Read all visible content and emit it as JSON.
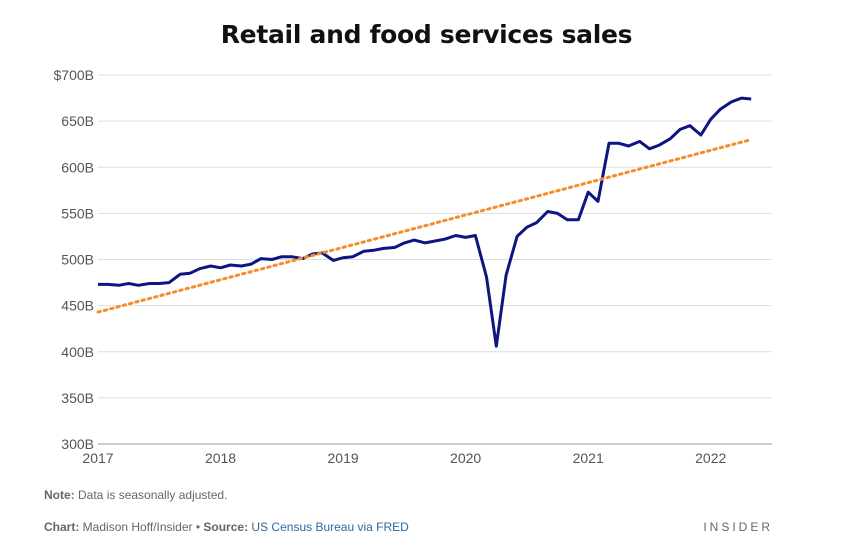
{
  "chart_data": {
    "type": "line",
    "title": "Retail and food services sales",
    "xlabel": "",
    "ylabel": "",
    "x_tick_labels": [
      "2017",
      "2018",
      "2019",
      "2020",
      "2021",
      "2022"
    ],
    "y_tick_labels": [
      "300B",
      "350B",
      "400B",
      "450B",
      "500B",
      "550B",
      "600B",
      "650B",
      "$700B"
    ],
    "ylim": [
      300,
      700
    ],
    "xlim": [
      2017.0,
      2022.5
    ],
    "grid": "horizontal",
    "colors": {
      "sales": "#0d1680",
      "trend": "#f28e2b"
    },
    "series": [
      {
        "style": "solid",
        "points": [
          [
            2017.0,
            473
          ],
          [
            2017.08,
            473
          ],
          [
            2017.17,
            472
          ],
          [
            2017.25,
            474
          ],
          [
            2017.33,
            472
          ],
          [
            2017.42,
            474
          ],
          [
            2017.5,
            474
          ],
          [
            2017.58,
            475
          ],
          [
            2017.67,
            484
          ],
          [
            2017.75,
            485
          ],
          [
            2017.83,
            490
          ],
          [
            2017.92,
            493
          ],
          [
            2018.0,
            491
          ],
          [
            2018.08,
            494
          ],
          [
            2018.17,
            493
          ],
          [
            2018.25,
            495
          ],
          [
            2018.33,
            501
          ],
          [
            2018.42,
            500
          ],
          [
            2018.5,
            503
          ],
          [
            2018.58,
            503
          ],
          [
            2018.67,
            501
          ],
          [
            2018.75,
            506
          ],
          [
            2018.83,
            507
          ],
          [
            2018.92,
            499
          ],
          [
            2019.0,
            502
          ],
          [
            2019.08,
            503
          ],
          [
            2019.17,
            509
          ],
          [
            2019.25,
            510
          ],
          [
            2019.33,
            512
          ],
          [
            2019.42,
            513
          ],
          [
            2019.5,
            518
          ],
          [
            2019.58,
            521
          ],
          [
            2019.67,
            518
          ],
          [
            2019.75,
            520
          ],
          [
            2019.83,
            522
          ],
          [
            2019.92,
            526
          ],
          [
            2020.0,
            524
          ],
          [
            2020.08,
            526
          ],
          [
            2020.17,
            481
          ],
          [
            2020.25,
            406
          ],
          [
            2020.33,
            483
          ],
          [
            2020.42,
            525
          ],
          [
            2020.5,
            535
          ],
          [
            2020.58,
            540
          ],
          [
            2020.67,
            552
          ],
          [
            2020.75,
            550
          ],
          [
            2020.83,
            543
          ],
          [
            2020.92,
            543
          ],
          [
            2021.0,
            573
          ],
          [
            2021.08,
            563
          ],
          [
            2021.17,
            626
          ],
          [
            2021.25,
            626
          ],
          [
            2021.33,
            623
          ],
          [
            2021.42,
            628
          ],
          [
            2021.5,
            620
          ],
          [
            2021.58,
            624
          ],
          [
            2021.67,
            631
          ],
          [
            2021.75,
            641
          ],
          [
            2021.83,
            645
          ],
          [
            2021.92,
            635
          ],
          [
            2022.0,
            652
          ],
          [
            2022.08,
            663
          ],
          [
            2022.17,
            671
          ],
          [
            2022.25,
            675
          ],
          [
            2022.33,
            674
          ]
        ]
      },
      {
        "style": "dotted",
        "points": [
          [
            2017.0,
            443
          ],
          [
            2022.33,
            630
          ]
        ]
      }
    ]
  },
  "footer": {
    "note_label": "Note:",
    "note_text": " Data is seasonally adjusted.",
    "chart_label": "Chart:",
    "chart_text": " Madison Hoff/Insider • ",
    "source_label": "Source:",
    "source_text": "US Census Bureau via FRED",
    "brand": "INSIDER"
  }
}
